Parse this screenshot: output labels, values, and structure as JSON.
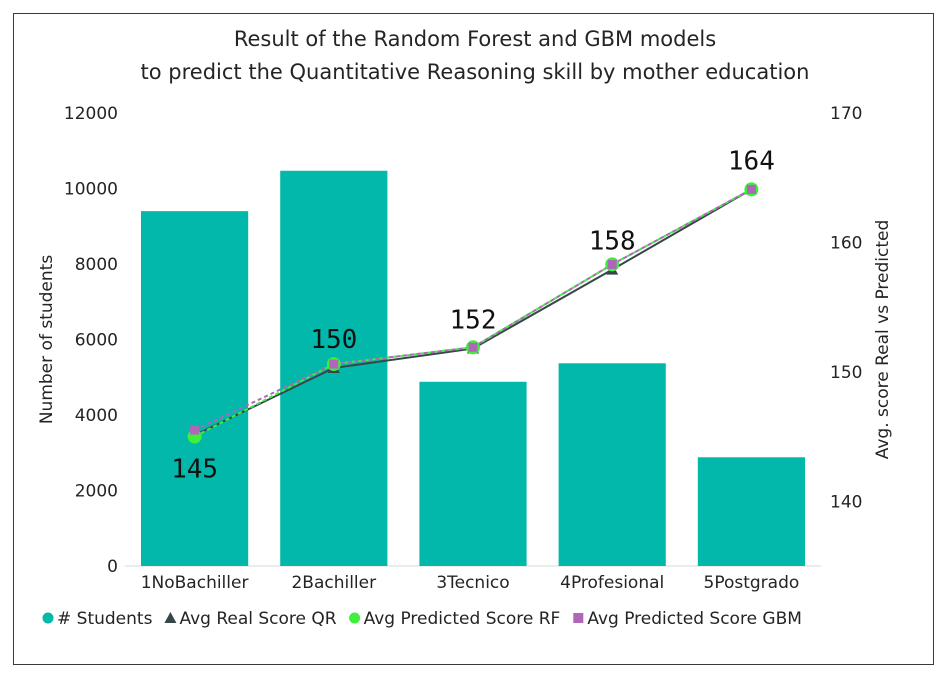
{
  "chart_data": {
    "type": "bar",
    "title_lines": [
      "Result of the Random Forest and GBM models",
      "to predict the Quantitative Reasoning skill by mother education"
    ],
    "categories": [
      "1NoBachiller",
      "2Bachiller",
      "3Tecnico",
      "4Profesional",
      "5Postgrado"
    ],
    "ylabel": "Number of students",
    "y2label": "Avg. score Real vs Predicted",
    "ylim": [
      0,
      12000
    ],
    "y2lim": [
      135,
      170
    ],
    "yticks": [
      "0",
      "2000",
      "4000",
      "6000",
      "8000",
      "10000",
      "12000"
    ],
    "y2ticks": [
      "140",
      "150",
      "160",
      "170"
    ],
    "series": [
      {
        "name": "# Students",
        "kind": "bar",
        "color": "#01b8aa",
        "values": [
          9400,
          10470,
          4880,
          5370,
          2880
        ]
      },
      {
        "name": "Avg Real Score QR",
        "kind": "line",
        "color": "#374649",
        "marker": "triangle",
        "values": [
          145.1,
          150.3,
          151.8,
          157.9,
          164.1
        ]
      },
      {
        "name": "Avg Predicted Score RF",
        "kind": "line",
        "color": "#3cf03c",
        "marker": "circle",
        "values": [
          145.0,
          150.6,
          151.9,
          158.3,
          164.1
        ]
      },
      {
        "name": "Avg Predicted Score GBM",
        "kind": "line",
        "color": "#b067b8",
        "marker": "square",
        "values": [
          145.5,
          150.6,
          151.9,
          158.3,
          164.1
        ]
      }
    ],
    "data_labels": [
      "145",
      "150",
      "152",
      "158",
      "164"
    ],
    "legend_position": "bottom",
    "grid": false
  }
}
